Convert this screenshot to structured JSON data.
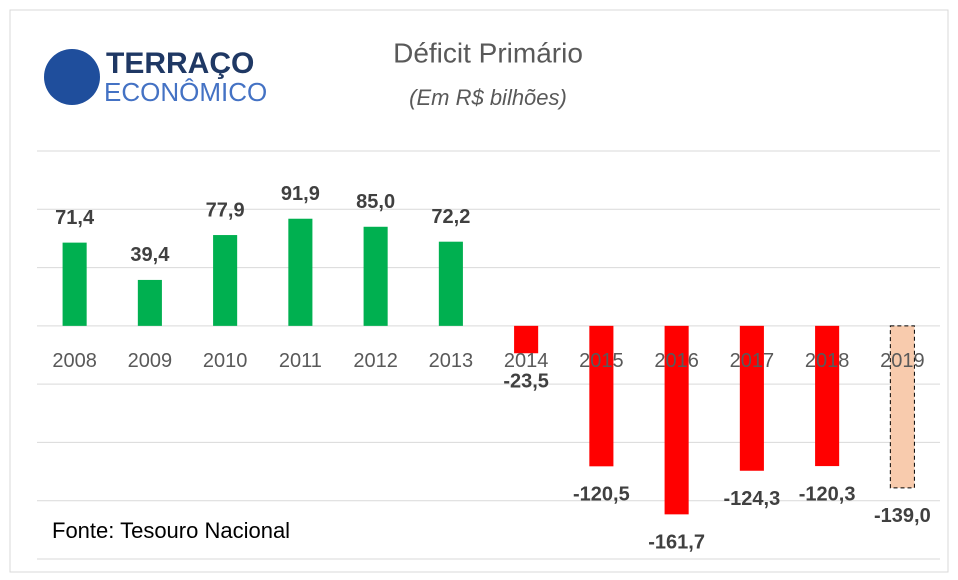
{
  "logo": {
    "line1": "TERRAÇO",
    "line2": "ECONÔMICO"
  },
  "chart_data": {
    "type": "bar",
    "title": "Déficit Primário",
    "subtitle": "(Em R$ bilhões)",
    "source": "Fonte: Tesouro Nacional",
    "categories": [
      "2008",
      "2009",
      "2010",
      "2011",
      "2012",
      "2013",
      "2014",
      "2015",
      "2016",
      "2017",
      "2018",
      "2019"
    ],
    "values": [
      71.4,
      39.4,
      77.9,
      91.9,
      85.0,
      72.2,
      -23.5,
      -120.5,
      -161.7,
      -124.3,
      -120.3,
      -139.0
    ],
    "value_labels": [
      "71,4",
      "39,4",
      "77,9",
      "91,9",
      "85,0",
      "72,2",
      "-23,5",
      "-120,5",
      "-161,7",
      "-124,3",
      "-120,3",
      "-139,0"
    ],
    "colors": [
      "#00b050",
      "#00b050",
      "#00b050",
      "#00b050",
      "#00b050",
      "#00b050",
      "#ff0000",
      "#ff0000",
      "#ff0000",
      "#ff0000",
      "#ff0000",
      "#f8cbad"
    ],
    "bar_borders": [
      null,
      null,
      null,
      null,
      null,
      null,
      null,
      null,
      null,
      null,
      null,
      "dashed"
    ],
    "ylim": [
      -200,
      150
    ],
    "yticks": [
      -200,
      -150,
      -100,
      -50,
      0,
      50,
      100,
      150
    ],
    "grid": true
  }
}
